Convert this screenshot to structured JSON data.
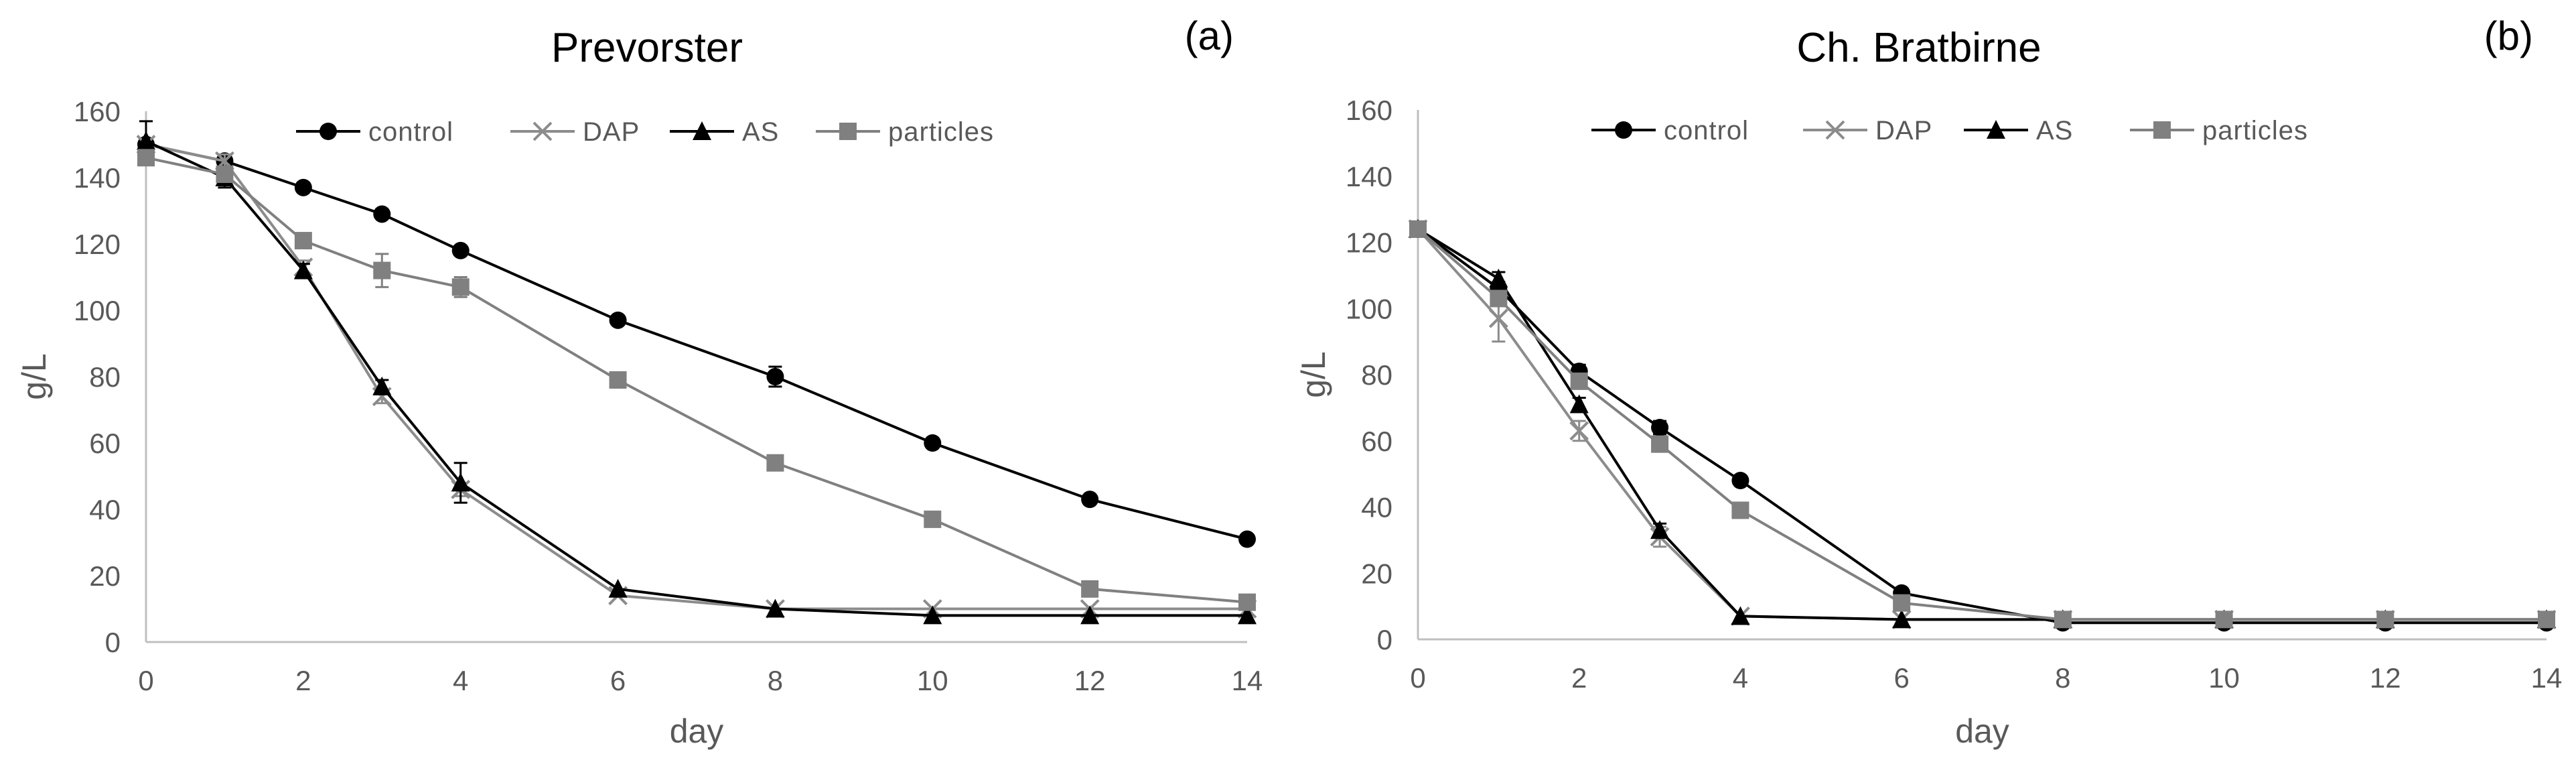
{
  "chart_data": [
    {
      "type": "line",
      "panel_label": "(a)",
      "title": "Prevorster",
      "xlabel": "day",
      "ylabel": "g/L",
      "xlim": [
        0,
        14
      ],
      "ylim": [
        0,
        160
      ],
      "x_ticks": [
        0,
        2,
        4,
        6,
        8,
        10,
        12,
        14
      ],
      "y_ticks": [
        0,
        20,
        40,
        60,
        80,
        100,
        120,
        140,
        160
      ],
      "grid": false,
      "legend_position": "top",
      "series": [
        {
          "name": "control",
          "marker": "circle",
          "color": "#000000",
          "x": [
            0,
            1,
            2,
            3,
            4,
            6,
            8,
            10,
            12,
            14
          ],
          "y": [
            150,
            145,
            137,
            129,
            118,
            97,
            80,
            60,
            43,
            31
          ],
          "err": [
            0,
            1,
            1,
            1,
            1,
            1,
            3,
            1,
            1,
            1
          ]
        },
        {
          "name": "DAP",
          "marker": "x",
          "color": "#8c8c8c",
          "x": [
            0,
            1,
            2,
            3,
            4,
            6,
            8,
            10,
            12,
            14
          ],
          "y": [
            150,
            145,
            113,
            74,
            46,
            14,
            10,
            10,
            10,
            10
          ],
          "err": [
            0,
            2,
            2,
            2,
            2,
            1,
            1,
            1,
            1,
            1
          ]
        },
        {
          "name": "AS",
          "marker": "triangle",
          "color": "#000000",
          "x": [
            0,
            1,
            2,
            3,
            4,
            6,
            8,
            10,
            12,
            14
          ],
          "y": [
            151,
            140,
            112,
            77,
            48,
            16,
            10,
            8,
            8,
            8
          ],
          "err": [
            6,
            3,
            2,
            2,
            6,
            1,
            1,
            1,
            1,
            1
          ]
        },
        {
          "name": "particles",
          "marker": "square",
          "color": "#808080",
          "x": [
            0,
            1,
            2,
            3,
            4,
            6,
            8,
            10,
            12,
            14
          ],
          "y": [
            146,
            141,
            121,
            112,
            107,
            79,
            54,
            37,
            16,
            12
          ],
          "err": [
            2,
            2,
            2,
            5,
            3,
            1,
            1,
            1,
            1,
            1
          ]
        }
      ]
    },
    {
      "type": "line",
      "panel_label": "(b)",
      "title": "Ch. Bratbirne",
      "xlabel": "day",
      "ylabel": "g/L",
      "xlim": [
        0,
        14
      ],
      "ylim": [
        0,
        160
      ],
      "x_ticks": [
        0,
        2,
        4,
        6,
        8,
        10,
        12,
        14
      ],
      "y_ticks": [
        0,
        20,
        40,
        60,
        80,
        100,
        120,
        140,
        160
      ],
      "grid": false,
      "legend_position": "top",
      "series": [
        {
          "name": "control",
          "marker": "circle",
          "color": "#000000",
          "x": [
            0,
            1,
            2,
            3,
            4,
            6,
            8,
            10,
            12,
            14
          ],
          "y": [
            124,
            106,
            81,
            64,
            48,
            14,
            5,
            5,
            5,
            5
          ],
          "err": [
            1,
            2,
            2,
            2,
            1,
            1,
            1,
            1,
            1,
            1
          ]
        },
        {
          "name": "DAP",
          "marker": "x",
          "color": "#8c8c8c",
          "x": [
            0,
            1,
            2,
            3,
            4,
            6,
            8,
            10,
            12,
            14
          ],
          "y": [
            124,
            97,
            63,
            31,
            7,
            6,
            6,
            6,
            6,
            6
          ],
          "err": [
            1,
            7,
            3,
            3,
            1,
            1,
            1,
            1,
            1,
            1
          ]
        },
        {
          "name": "AS",
          "marker": "triangle",
          "color": "#000000",
          "x": [
            0,
            1,
            2,
            3,
            4,
            6,
            8,
            10,
            12,
            14
          ],
          "y": [
            124,
            109,
            71,
            33,
            7,
            6,
            6,
            6,
            6,
            6
          ],
          "err": [
            1,
            2,
            2,
            2,
            1,
            1,
            1,
            1,
            1,
            1
          ]
        },
        {
          "name": "particles",
          "marker": "square",
          "color": "#808080",
          "x": [
            0,
            1,
            2,
            3,
            4,
            6,
            8,
            10,
            12,
            14
          ],
          "y": [
            124,
            103,
            78,
            59,
            39,
            11,
            6,
            6,
            6,
            6
          ],
          "err": [
            1,
            2,
            2,
            2,
            1,
            1,
            1,
            1,
            1,
            1
          ]
        }
      ]
    }
  ]
}
